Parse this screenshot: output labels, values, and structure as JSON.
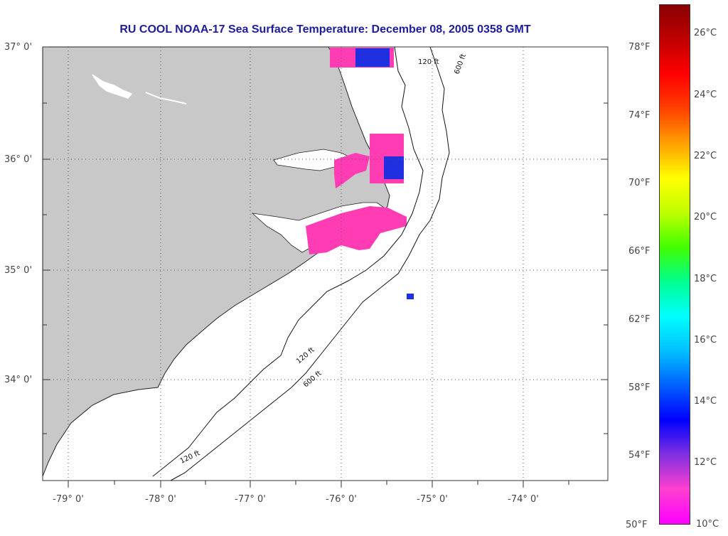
{
  "title": "RU COOL  NOAA-17  Sea Surface Temperature:  December 08, 2005 0358 GMT",
  "latitude_labels": [
    "37° 0'",
    "36° 0'",
    "35° 0'",
    "34° 0'"
  ],
  "longitude_labels": [
    "-79° 0'",
    "-78° 0'",
    "-77° 0'",
    "-76° 0'",
    "-75° 0'",
    "-74° 0'"
  ],
  "fahrenheit_labels": [
    "78°F",
    "74°F",
    "70°F",
    "66°F",
    "62°F",
    "58°F",
    "54°F",
    "50°F"
  ],
  "celsius_labels": [
    "26°C",
    "24°C",
    "22°C",
    "20°C",
    "18°C",
    "16°C",
    "14°C",
    "12°C",
    "10°C"
  ],
  "contour_labels": [
    "120 ft",
    "600 ft"
  ],
  "colors": {
    "land": "#c8c8c8",
    "ocean": "#ffffff",
    "title": "#1c1c9c",
    "sst_cold_pink": "#ff3cb4",
    "sst_blue": "#2030e0"
  },
  "colorbar": {
    "stops": [
      "#ff00ff",
      "#ff40d0",
      "#8030e0",
      "#0000ff",
      "#0060ff",
      "#00c0ff",
      "#00ffff",
      "#00ff90",
      "#40ff00",
      "#c0ff00",
      "#ffff00",
      "#ffa000",
      "#ff4000",
      "#ff0000",
      "#c00000",
      "#8b0000"
    ]
  }
}
